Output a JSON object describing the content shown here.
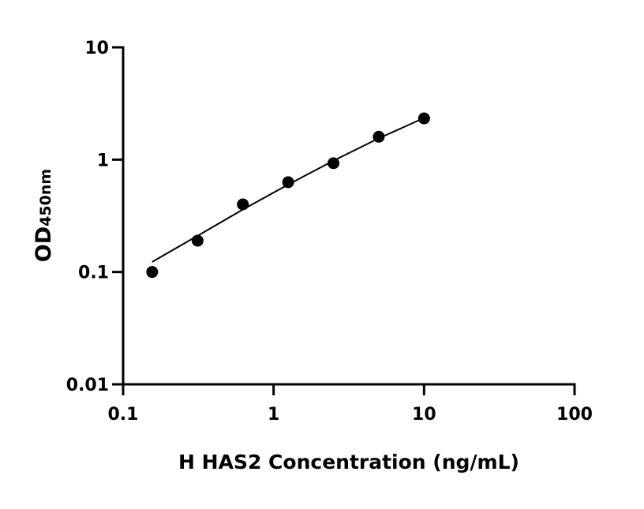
{
  "chart_data": {
    "type": "scatter",
    "title": "",
    "xlabel": "H HAS2 Concentration (ng/mL)",
    "ylabel_main": "OD",
    "ylabel_sub": "450nm",
    "x_scale": "log",
    "y_scale": "log",
    "xlim": [
      0.1,
      100
    ],
    "ylim": [
      0.01,
      10
    ],
    "x_ticks": [
      "0.1",
      "1",
      "10",
      "100"
    ],
    "y_ticks": [
      "0.01",
      "0.1",
      "1",
      "10"
    ],
    "grid": false,
    "points": {
      "x": [
        0.156,
        0.3125,
        0.625,
        1.25,
        2.5,
        5,
        10
      ],
      "y": [
        0.1,
        0.19,
        0.4,
        0.63,
        0.93,
        1.6,
        2.33
      ]
    },
    "fit_curve": {
      "x": [
        0.156,
        0.3125,
        0.625,
        1.25,
        2.5,
        5,
        10
      ],
      "y": [
        0.123,
        0.21,
        0.36,
        0.6,
        0.98,
        1.55,
        2.35
      ]
    },
    "colors": {
      "points": "#000000",
      "line": "#000000"
    }
  }
}
